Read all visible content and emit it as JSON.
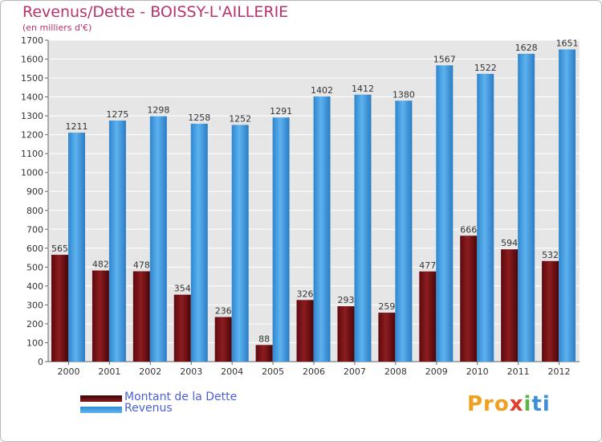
{
  "chart_data": {
    "type": "bar",
    "title": "Revenus/Dette - BOISSY-L'AILLERIE",
    "subtitle": "(en milliers d'€)",
    "categories": [
      "2000",
      "2001",
      "2002",
      "2003",
      "2004",
      "2005",
      "2006",
      "2007",
      "2008",
      "2009",
      "2010",
      "2011",
      "2012"
    ],
    "series": [
      {
        "name": "Montant de la Dette",
        "color": "#7a1418",
        "values": [
          565,
          482,
          478,
          354,
          236,
          88,
          326,
          293,
          259,
          477,
          666,
          594,
          532
        ]
      },
      {
        "name": "Revenus",
        "color": "#3d9be0",
        "values": [
          1211,
          1275,
          1298,
          1258,
          1252,
          1291,
          1402,
          1412,
          1380,
          1567,
          1522,
          1628,
          1651
        ]
      }
    ],
    "ylim": [
      0,
      1700
    ],
    "yticks": [
      0,
      100,
      200,
      300,
      400,
      500,
      600,
      700,
      800,
      900,
      1000,
      1100,
      1200,
      1300,
      1400,
      1500,
      1600,
      1700
    ],
    "grid": true,
    "legend_position": "bottom-left",
    "xlabel": "",
    "ylabel": ""
  },
  "logo": {
    "p1": "Pro",
    "p2": "x",
    "p3": "i",
    "p4": "ti"
  },
  "colors": {
    "plot_bg": "#e6e6e6",
    "title": "#b8336a",
    "legend_text": "#4a5fd0"
  }
}
